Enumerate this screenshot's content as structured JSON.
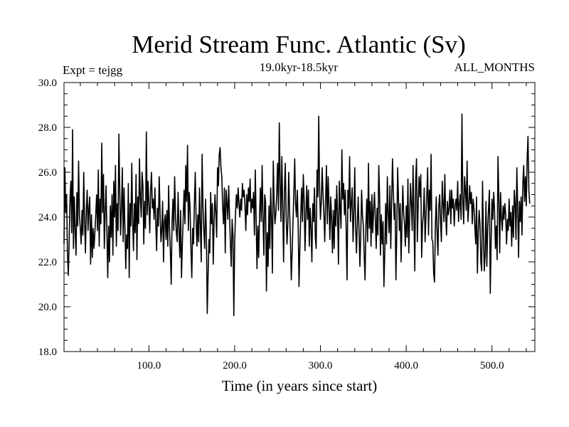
{
  "chart_data": {
    "type": "line",
    "title": "Merid Stream Func. Atlantic (Sv)",
    "subtitle": "19.0kyr-18.5kyr",
    "experiment": "Expt = tejgg",
    "months": "ALL_MONTHS",
    "xlabel": "Time (in years since start)",
    "ylabel": "",
    "xlim": [
      1,
      550
    ],
    "ylim": [
      18.0,
      30.0
    ],
    "xticks": [
      "100.0",
      "200.0",
      "300.0",
      "400.0",
      "500.0"
    ],
    "xtick_values": [
      100,
      200,
      300,
      400,
      500
    ],
    "yticks": [
      "18.0",
      "20.0",
      "22.0",
      "24.0",
      "26.0",
      "28.0",
      "30.0"
    ],
    "ytick_values": [
      18,
      20,
      22,
      24,
      26,
      28,
      30
    ],
    "grid": false,
    "line_color": "#000000",
    "series": [
      {
        "x_start": 1,
        "x_step": 1,
        "values": [
          22.8,
          26.2,
          24.2,
          25.0,
          22.4,
          21.4,
          22.9,
          24.8,
          25.6,
          23.3,
          27.9,
          22.6,
          24.9,
          23.4,
          22.3,
          25.1,
          23.6,
          26.5,
          24.1,
          23.5,
          22.8,
          24.3,
          23.2,
          26.0,
          23.8,
          22.4,
          24.3,
          25.2,
          23.4,
          24.4,
          24.9,
          21.9,
          24.1,
          22.2,
          23.5,
          22.6,
          23.3,
          24.1,
          25.0,
          23.4,
          26.1,
          22.7,
          24.8,
          23.7,
          27.3,
          24.2,
          25.9,
          22.6,
          24.2,
          25.4,
          23.3,
          21.3,
          23.6,
          22.0,
          24.5,
          23.1,
          25.0,
          22.3,
          25.6,
          24.0,
          26.3,
          22.7,
          24.6,
          23.4,
          27.7,
          25.1,
          23.2,
          24.4,
          26.2,
          22.9,
          25.3,
          23.6,
          21.7,
          23.2,
          22.6,
          25.5,
          21.3,
          24.6,
          23.6,
          26.4,
          23.9,
          22.5,
          24.6,
          23.3,
          25.9,
          22.1,
          24.9,
          23.7,
          26.6,
          24.8,
          24.0,
          26.0,
          25.4,
          22.8,
          24.7,
          23.5,
          27.8,
          24.1,
          25.6,
          24.6,
          23.3,
          25.2,
          26.0,
          24.4,
          24.8,
          23.9,
          25.3,
          23.7,
          22.5,
          24.4,
          23.6,
          25.8,
          24.2,
          22.9,
          23.4,
          24.7,
          22.0,
          23.8,
          24.1,
          23.0,
          24.3,
          22.7,
          25.4,
          23.5,
          22.5,
          21.0,
          23.8,
          24.8,
          23.4,
          25.8,
          24.1,
          23.3,
          22.9,
          25.1,
          23.5,
          22.2,
          24.3,
          21.3,
          22.8,
          24.0,
          25.2,
          23.7,
          26.3,
          24.7,
          27.2,
          23.4,
          25.1,
          24.4,
          22.6,
          21.3,
          23.5,
          22.8,
          24.6,
          26.0,
          23.9,
          22.7,
          24.1,
          22.9,
          25.3,
          23.6,
          22.0,
          26.8,
          24.5,
          23.4,
          22.6,
          24.8,
          23.3,
          19.7,
          21.4,
          23.0,
          22.4,
          25.1,
          23.7,
          24.6,
          21.9,
          23.8,
          25.0,
          24.2,
          23.1,
          26.2,
          25.4,
          26.8,
          27.1,
          26.2,
          25.8,
          24.4,
          23.7,
          25.3,
          22.4,
          25.2,
          24.6,
          23.9,
          25.4,
          24.1,
          22.8,
          21.8,
          23.9,
          23.2,
          19.6,
          22.9,
          24.2,
          25.0,
          24.4,
          25.3,
          24.6,
          24.0,
          24.8,
          24.3,
          25.5,
          24.9,
          25.2,
          24.5,
          23.4,
          25.0,
          24.1,
          25.3,
          24.7,
          25.7,
          24.2,
          24.8,
          24.4,
          25.1,
          23.2,
          26.1,
          24.0,
          21.7,
          23.6,
          22.2,
          24.1,
          25.3,
          23.8,
          26.3,
          24.0,
          22.3,
          25.0,
          24.7,
          20.7,
          23.3,
          21.8,
          24.5,
          22.6,
          25.3,
          23.9,
          21.5,
          26.5,
          24.6,
          23.7,
          24.2,
          25.0,
          26.4,
          24.3,
          28.2,
          25.6,
          23.8,
          26.7,
          24.5,
          22.0,
          25.1,
          26.4,
          24.1,
          22.8,
          23.7,
          26.0,
          24.3,
          23.0,
          21.2,
          22.4,
          23.8,
          25.1,
          26.6,
          24.6,
          24.0,
          25.2,
          23.7,
          20.9,
          22.6,
          24.1,
          25.3,
          23.8,
          25.9,
          24.8,
          22.5,
          24.0,
          25.4,
          23.9,
          25.2,
          22.7,
          24.4,
          23.5,
          22.0,
          24.6,
          23.8,
          25.3,
          23.1,
          22.6,
          26.1,
          24.9,
          28.5,
          25.2,
          23.9,
          24.7,
          26.2,
          25.0,
          24.2,
          22.9,
          24.7,
          26.3,
          23.7,
          25.8,
          24.5,
          23.0,
          24.9,
          23.9,
          22.4,
          24.3,
          22.6,
          24.8,
          23.6,
          25.4,
          24.1,
          21.9,
          25.6,
          24.4,
          23.5,
          27.0,
          24.8,
          25.5,
          24.1,
          25.2,
          23.4,
          21.2,
          25.2,
          24.4,
          26.7,
          23.8,
          24.6,
          25.3,
          22.9,
          24.1,
          26.2,
          23.6,
          22.4,
          23.7,
          24.9,
          23.4,
          21.8,
          23.2,
          25.2,
          24.1,
          23.6,
          22.3,
          21.2,
          23.6,
          24.8,
          22.9,
          26.4,
          23.5,
          24.7,
          22.7,
          25.0,
          23.3,
          24.3,
          25.1,
          23.9,
          22.6,
          24.4,
          23.2,
          26.3,
          24.9,
          22.3,
          24.1,
          22.8,
          23.8,
          20.9,
          22.4,
          24.6,
          22.8,
          25.8,
          24.2,
          23.3,
          25.4,
          22.6,
          24.7,
          26.6,
          25.1,
          23.9,
          24.6,
          21.2,
          23.3,
          26.2,
          24.8,
          23.4,
          24.6,
          22.0,
          23.6,
          25.4,
          24.2,
          23.7,
          22.7,
          24.5,
          23.1,
          25.7,
          22.4,
          23.9,
          25.5,
          24.6,
          23.4,
          26.3,
          24.0,
          21.6,
          25.6,
          26.6,
          22.9,
          24.6,
          25.8,
          24.9,
          25.9,
          22.2,
          23.7,
          24.1,
          25.3,
          22.9,
          24.0,
          25.0,
          26.2,
          23.2,
          25.2,
          24.3,
          26.8,
          23.0,
          22.9,
          21.5,
          21.1,
          23.6,
          24.9,
          23.3,
          22.3,
          24.5,
          25.0,
          23.8,
          22.9,
          25.6,
          24.6,
          23.8,
          25.9,
          24.1,
          23.2,
          24.7,
          24.1,
          24.4,
          25.2,
          23.7,
          25.2,
          24.4,
          24.8,
          23.6,
          24.5,
          24.8,
          24.3,
          25.6,
          23.8,
          24.6,
          25.0,
          23.9,
          28.6,
          24.7,
          23.7,
          25.8,
          25.2,
          24.3,
          26.5,
          23.8,
          24.5,
          25.4,
          24.6,
          25.1,
          23.7,
          24.8,
          24.4,
          23.6,
          22.8,
          24.9,
          21.5,
          23.3,
          24.3,
          23.7,
          22.0,
          21.6,
          25.6,
          23.3,
          21.6,
          22.3,
          24.7,
          21.8,
          23.5,
          24.4,
          25.2,
          20.6,
          22.9,
          24.8,
          23.9,
          25.1,
          24.3,
          22.6,
          23.6,
          22.1,
          26.7,
          24.9,
          22.4,
          25.1,
          24.0,
          23.4,
          24.5,
          23.9,
          24.6,
          24.1,
          22.8,
          23.9,
          23.4,
          24.8,
          23.6,
          24.2,
          22.7,
          24.5,
          23.1,
          25.2,
          24.6,
          23.0,
          26.2,
          24.4,
          22.2,
          24.7,
          23.8,
          24.9,
          23.2,
          25.5,
          26.3,
          24.7,
          25.8,
          24.5,
          26.6,
          27.6,
          25.2,
          24.6
        ]
      }
    ]
  }
}
